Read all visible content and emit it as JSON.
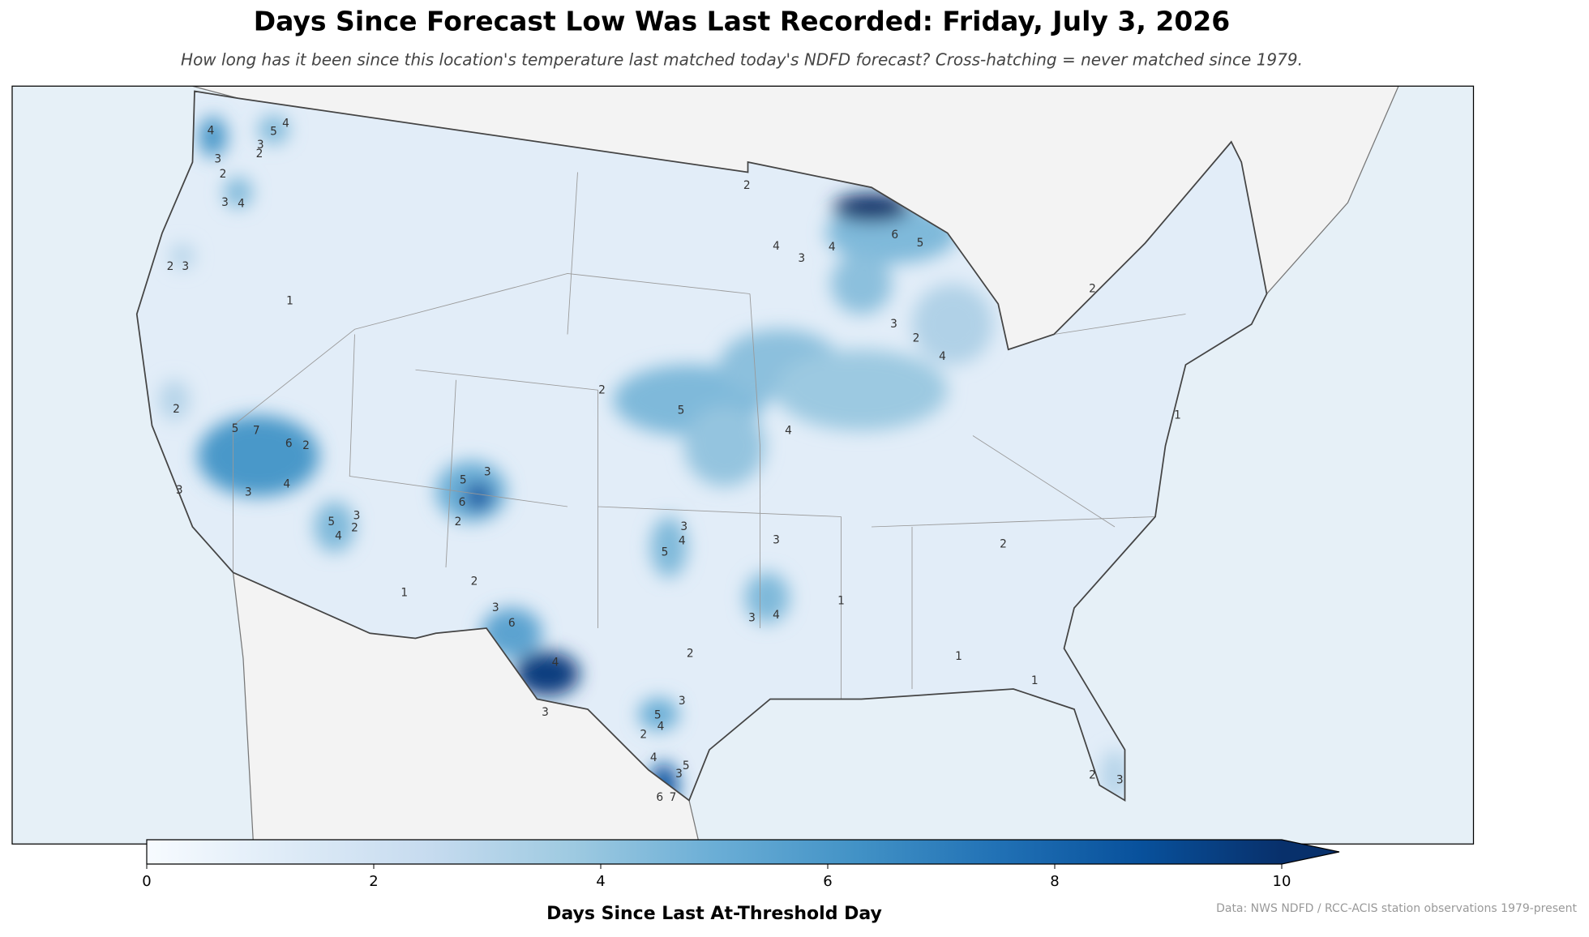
{
  "header": {
    "title": "Days Since Forecast Low Was Last Recorded: Friday, July 3, 2026",
    "subtitle": "How long has it been since this location's temperature last matched today's NDFD forecast? Cross-hatching = never matched since 1979."
  },
  "map": {
    "contour_labels": [
      5,
      7,
      6,
      2,
      4,
      3,
      5,
      4,
      3,
      2,
      4,
      3,
      2,
      3,
      4,
      2,
      3,
      1,
      2,
      3,
      5,
      4,
      3,
      2,
      5,
      3,
      6,
      2,
      2,
      3,
      6,
      4,
      3,
      5,
      2,
      4,
      3,
      4,
      5,
      3,
      4,
      3,
      4,
      4,
      3,
      6,
      5,
      3,
      2,
      4,
      2,
      5,
      3,
      4,
      2,
      4,
      5,
      7,
      6,
      3,
      2,
      3,
      1,
      1,
      1,
      1,
      2,
      2,
      2,
      1
    ]
  },
  "colorbar": {
    "range": [
      0,
      10
    ],
    "ticks": [
      0,
      2,
      4,
      6,
      8,
      10
    ],
    "label": "Days Since Last At-Threshold Day",
    "colormap": "Blues",
    "extend": "max"
  },
  "source": "Data: NWS NDFD / RCC-ACIS station observations 1979-present"
}
